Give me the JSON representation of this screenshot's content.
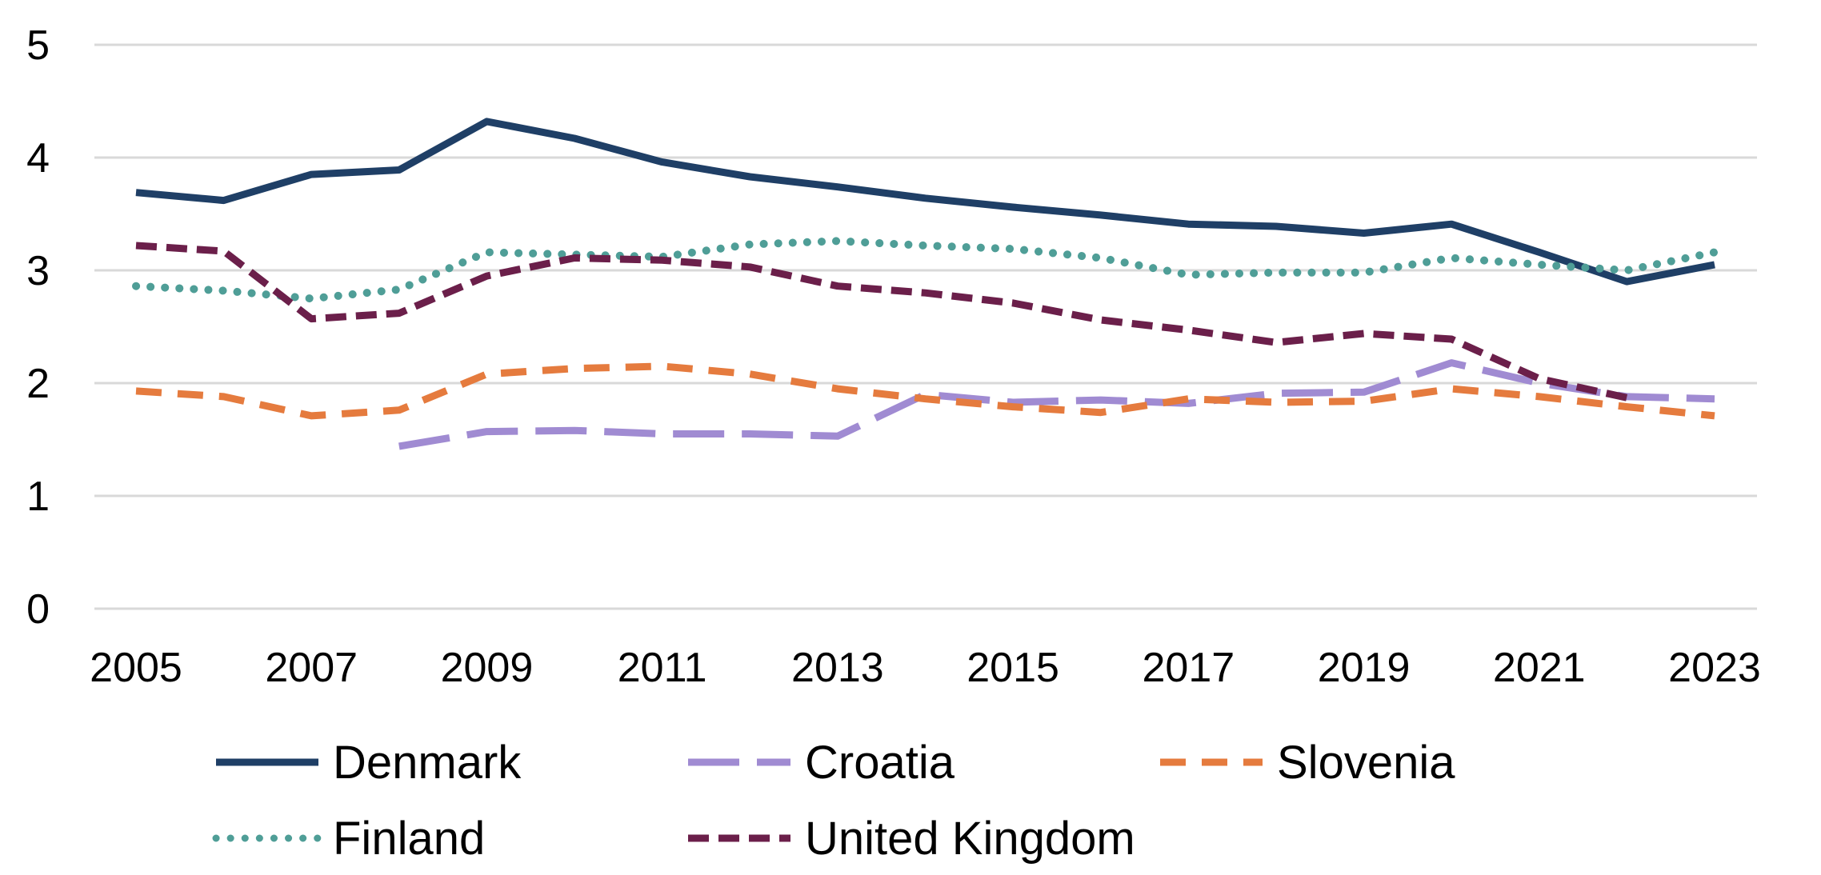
{
  "chart_data": {
    "type": "line",
    "title": "",
    "xlabel": "",
    "ylabel": "",
    "ylim": [
      0,
      5
    ],
    "yticks": [
      "0",
      "1",
      "2",
      "3",
      "4",
      "5"
    ],
    "xticks": [
      "2005",
      "2007",
      "2009",
      "2011",
      "2013",
      "2015",
      "2017",
      "2019",
      "2021",
      "2023"
    ],
    "grid": true,
    "legend_position": "bottom",
    "x": [
      2005,
      2006,
      2007,
      2008,
      2009,
      2010,
      2011,
      2012,
      2013,
      2014,
      2015,
      2016,
      2017,
      2018,
      2019,
      2020,
      2021,
      2022,
      2023
    ],
    "series": [
      {
        "name": "Denmark",
        "color": "#1f3f66",
        "dash": "solid",
        "values": [
          3.69,
          3.62,
          3.85,
          3.89,
          4.32,
          4.17,
          3.96,
          3.83,
          3.74,
          3.64,
          3.56,
          3.49,
          3.41,
          3.39,
          3.33,
          3.41,
          3.16,
          2.9,
          3.05
        ]
      },
      {
        "name": "Croatia",
        "color": "#a08bd2",
        "dash": "long-dash",
        "values": [
          null,
          null,
          null,
          1.44,
          1.57,
          1.58,
          1.55,
          1.55,
          1.53,
          1.9,
          1.83,
          1.85,
          1.82,
          1.91,
          1.92,
          2.18,
          2.0,
          1.88,
          1.86
        ]
      },
      {
        "name": "Slovenia",
        "color": "#e57b3e",
        "dash": "dash",
        "values": [
          1.93,
          1.88,
          1.71,
          1.76,
          2.08,
          2.13,
          2.15,
          2.08,
          1.95,
          1.86,
          1.79,
          1.74,
          1.86,
          1.83,
          1.84,
          1.95,
          1.88,
          1.79,
          1.71
        ]
      },
      {
        "name": "Finland",
        "color": "#4f9e97",
        "dash": "dot",
        "values": [
          2.86,
          2.82,
          2.75,
          2.83,
          3.16,
          3.14,
          3.12,
          3.23,
          3.26,
          3.22,
          3.19,
          3.11,
          2.96,
          2.98,
          2.98,
          3.11,
          3.05,
          3.0,
          3.16
        ]
      },
      {
        "name": "United Kingdom",
        "color": "#6b1f4a",
        "dash": "short-dash",
        "values": [
          3.22,
          3.17,
          2.57,
          2.62,
          2.95,
          3.11,
          3.09,
          3.03,
          2.86,
          2.8,
          2.71,
          2.56,
          2.47,
          2.36,
          2.44,
          2.39,
          2.04,
          1.87,
          null
        ]
      }
    ]
  }
}
